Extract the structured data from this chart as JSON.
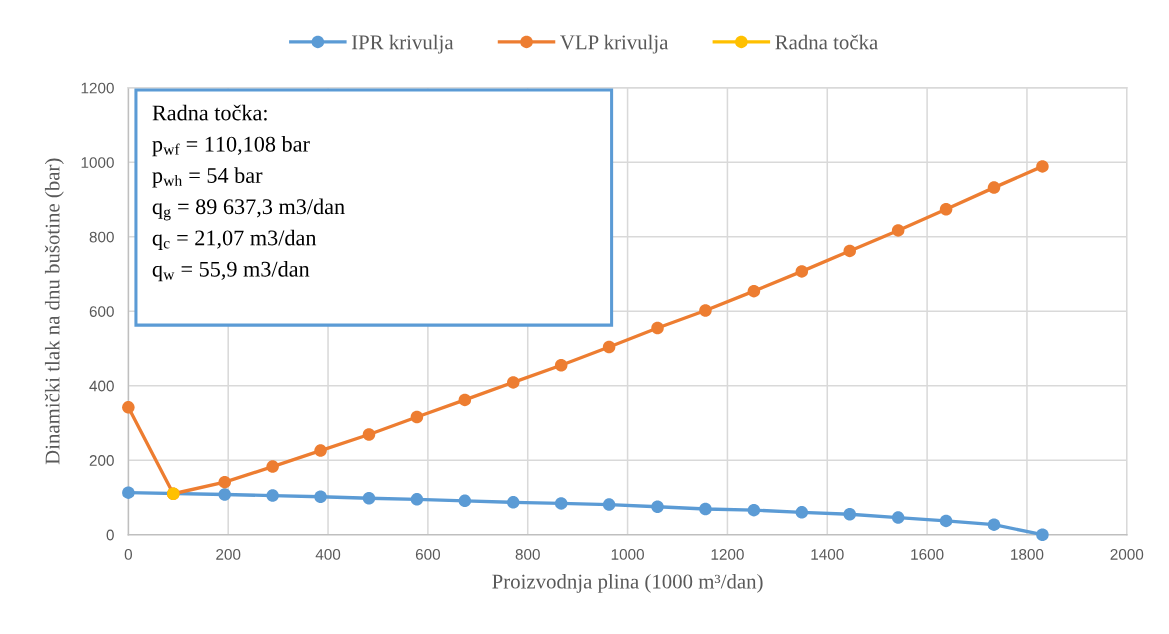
{
  "chart_data": {
    "type": "line",
    "xlabel": "Proizvodnja plina (1000 m³/dan)",
    "ylabel": "Dinamički tlak na dnu bušotine (bar)",
    "series": [
      {
        "name": "IPR krivulja",
        "color": "#5b9bd5",
        "x": [
          0,
          193,
          289,
          385,
          482,
          578,
          674,
          771,
          867,
          963,
          1060,
          1156,
          1253,
          1349,
          1445,
          1542,
          1638,
          1734,
          1831
        ],
        "values": [
          113,
          108,
          105,
          102,
          98,
          95,
          91,
          87,
          84,
          81,
          75,
          69,
          66,
          60,
          55,
          46,
          37,
          27,
          0
        ]
      },
      {
        "name": "VLP krivulja",
        "color": "#ed7d31",
        "x": [
          0,
          90,
          193,
          289,
          385,
          482,
          578,
          674,
          771,
          867,
          963,
          1060,
          1156,
          1253,
          1349,
          1445,
          1542,
          1638,
          1734,
          1831
        ],
        "values": [
          342,
          110,
          141,
          183,
          226,
          269,
          316,
          362,
          409,
          455,
          504,
          555,
          602,
          654,
          707,
          762,
          817,
          874,
          932,
          989
        ]
      },
      {
        "name": "Radna točka",
        "color": "#ffc000",
        "x": [
          90
        ],
        "values": [
          110
        ]
      }
    ],
    "annotations": [
      "Radna točka:",
      "p$_{wf}$ = 110,108 bar",
      "p$_{wh}$ = 54 bar",
      "q$_{g}$ = 89 637,3 m3/dan",
      "q$_{c}$ = 21,07 m3/dan",
      "q$_{w}$ = 55,9 m3/dan"
    ],
    "xlim": [
      0,
      2000
    ],
    "xticks": [
      0,
      200,
      400,
      600,
      800,
      1000,
      1200,
      1400,
      1600,
      1800,
      2000
    ],
    "ylim": [
      0,
      1200
    ],
    "yticks": [
      0,
      200,
      400,
      600,
      800,
      1000,
      1200
    ],
    "grid": true,
    "legend": "top",
    "marker": "circle",
    "line_style": "solid"
  }
}
